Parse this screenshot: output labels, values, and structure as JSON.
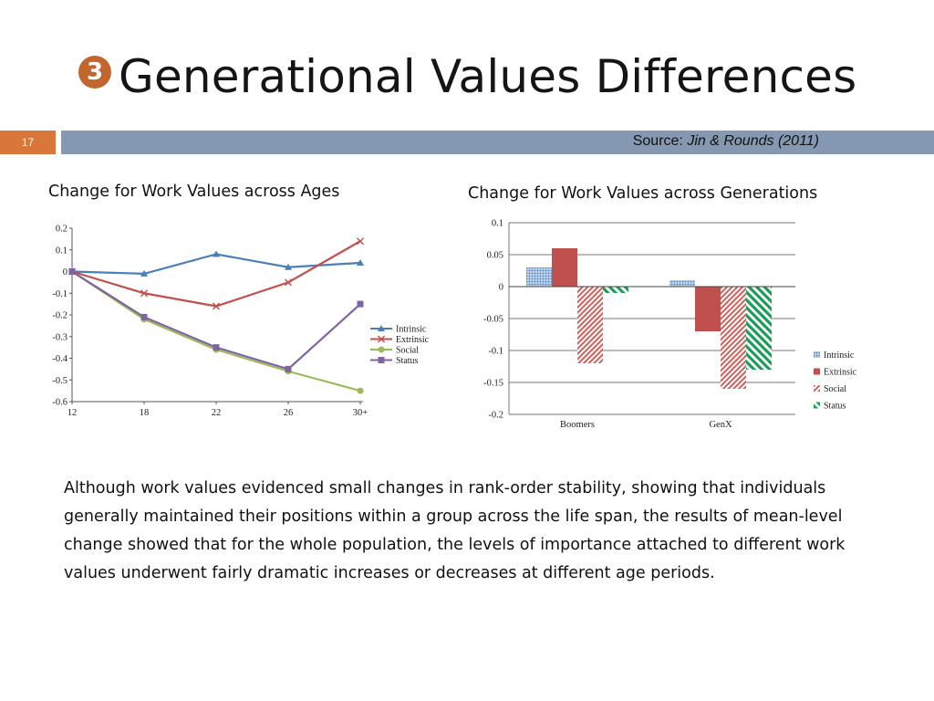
{
  "slide": {
    "badge": "3",
    "title": "Generational Values Differences",
    "number": "17",
    "source_label": "Source: ",
    "source_citation": "Jin & Rounds (2011)",
    "body": "Although work values evidenced small changes in rank-order stability, showing that individuals generally maintained their positions within a group across the life span, the results of mean-level change showed that for the whole population, the levels of importance attached to different work values underwent fairly dramatic increases or decreases at different age periods."
  },
  "colors": {
    "Intrinsic": "#4a7eb7",
    "Extrinsic": "#c0504d",
    "Social": "#9bbb59",
    "Status": "#8064a2",
    "badge": "#c0662e",
    "slide_number_box": "#d9773b",
    "header_bar": "#8499b1"
  },
  "chart_data": [
    {
      "type": "line",
      "title": "Change for Work Values across Ages",
      "x": [
        "12",
        "18",
        "22",
        "26",
        "30+"
      ],
      "ylim": [
        -0.6,
        0.2
      ],
      "yticks": [
        "0.2",
        "0.1",
        "0",
        "-0.1",
        "-0.2",
        "-0.3",
        "-0.4",
        "-0.5",
        "-0.6"
      ],
      "grid": false,
      "legend": "right",
      "series": [
        {
          "name": "Intrinsic",
          "values": [
            0,
            -0.01,
            0.08,
            0.02,
            0.04
          ],
          "marker": "triangle"
        },
        {
          "name": "Extrinsic",
          "values": [
            0,
            -0.1,
            -0.16,
            -0.05,
            0.14
          ],
          "marker": "x"
        },
        {
          "name": "Social",
          "values": [
            0,
            -0.22,
            -0.36,
            -0.46,
            -0.55
          ],
          "marker": "circle"
        },
        {
          "name": "Status",
          "values": [
            0,
            -0.21,
            -0.35,
            -0.45,
            -0.15
          ],
          "marker": "square"
        }
      ]
    },
    {
      "type": "bar",
      "title": "Change for Work Values across Generations",
      "categories": [
        "Boomers",
        "GenX"
      ],
      "ylim": [
        -0.2,
        0.1
      ],
      "yticks": [
        "0.1",
        "0.05",
        "0",
        "-0.05",
        "-0.1",
        "-0.15",
        "-0.2"
      ],
      "grid": true,
      "legend": "right",
      "series": [
        {
          "name": "Intrinsic",
          "values": [
            0.03,
            0.01
          ],
          "pattern": "dots"
        },
        {
          "name": "Extrinsic",
          "values": [
            0.06,
            -0.07
          ],
          "pattern": "solid"
        },
        {
          "name": "Social",
          "values": [
            -0.12,
            -0.16
          ],
          "pattern": "diagonal"
        },
        {
          "name": "Status",
          "values": [
            -0.01,
            -0.13
          ],
          "pattern": "back-diagonal"
        }
      ]
    }
  ]
}
